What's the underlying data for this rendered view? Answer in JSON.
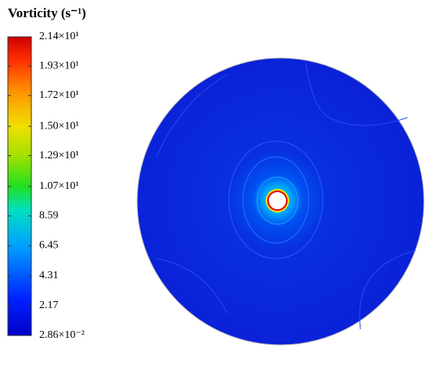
{
  "chart_data": {
    "type": "contour",
    "title": "Vorticity (s⁻¹)",
    "clim": [
      0.0286,
      21.4
    ],
    "cticks": [
      {
        "value": 21.4,
        "label": "2.14×10¹"
      },
      {
        "value": 19.3,
        "label": "1.93×10¹"
      },
      {
        "value": 17.2,
        "label": "1.72×10¹"
      },
      {
        "value": 15.0,
        "label": "1.50×10¹"
      },
      {
        "value": 12.9,
        "label": "1.29×10¹"
      },
      {
        "value": 10.7,
        "label": "1.07×10¹"
      },
      8.59,
      6.45,
      4.31,
      2.17,
      {
        "value": 0.0286,
        "label": "2.86×10⁻²"
      }
    ]
  }
}
